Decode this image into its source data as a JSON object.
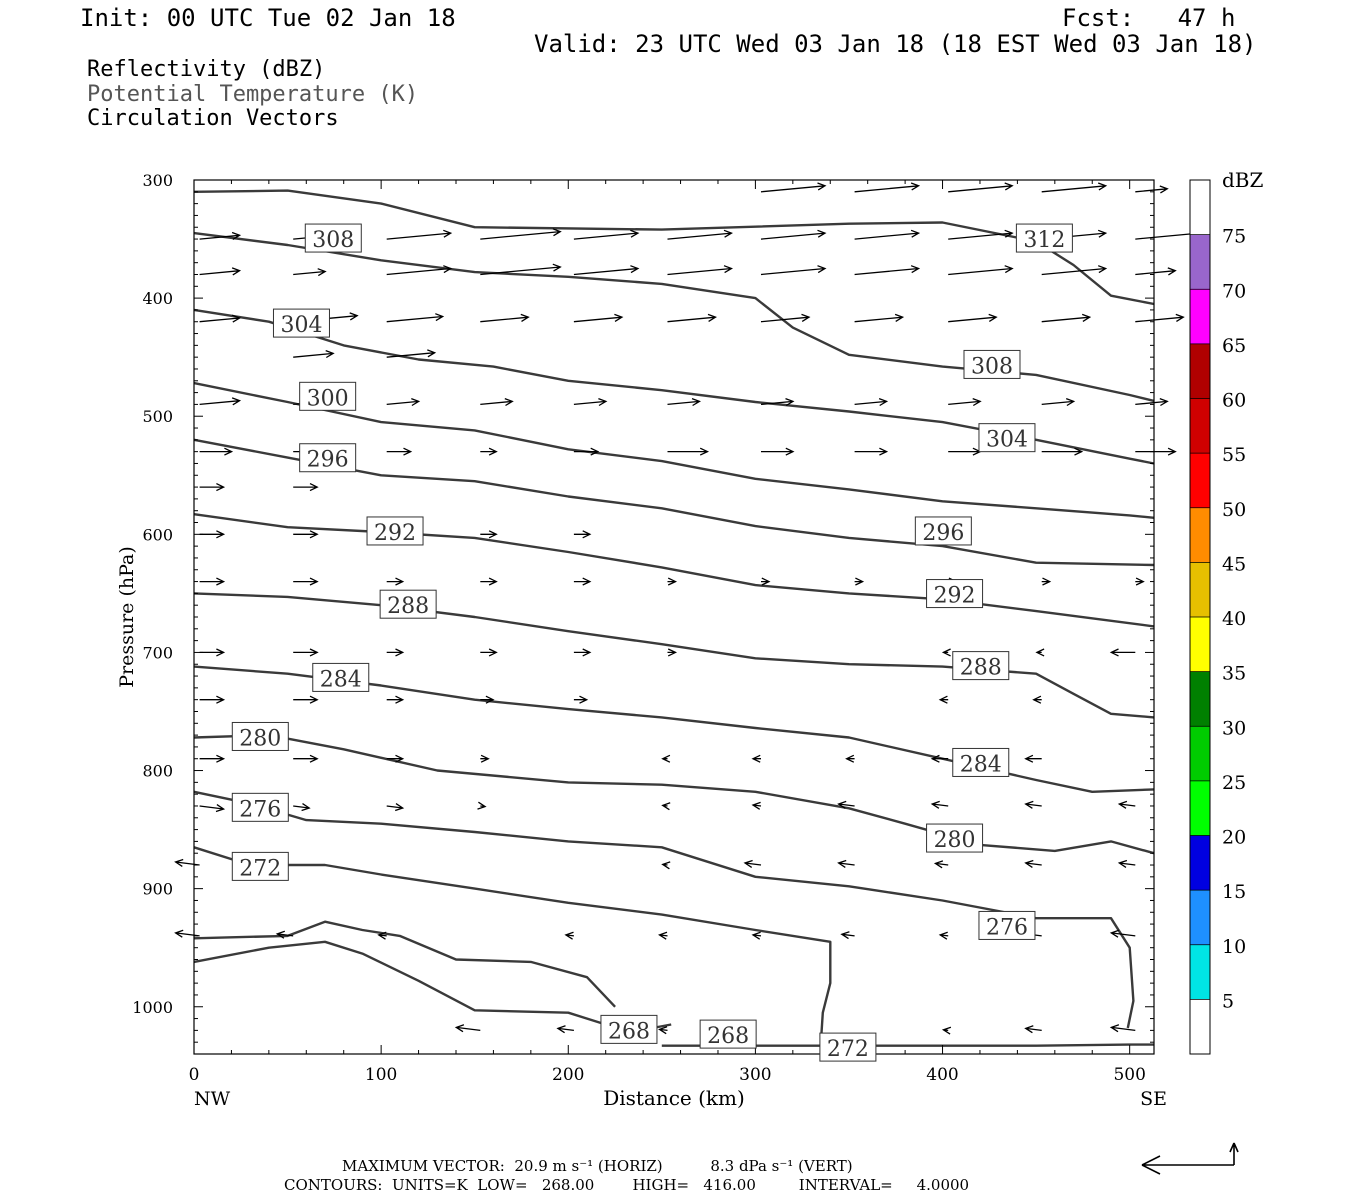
{
  "header": {
    "init": "Init: 00 UTC Tue 02 Jan 18",
    "fcst": "Fcst:   47 h",
    "valid": "Valid: 23 UTC Wed 03 Jan 18 (18 EST Wed 03 Jan 18)",
    "fields": [
      "Reflectivity (dBZ)",
      "Potential Temperature (K)",
      "Circulation Vectors"
    ]
  },
  "footer": {
    "max_vector": "MAXIMUM VECTOR:  20.9 m s⁻¹ (HORIZ)          8.3 dPa s⁻¹ (VERT)",
    "contours": "CONTOURS:  UNITS=K  LOW=   268.00        HIGH=   416.00         INTERVAL=     4.0000"
  },
  "colors": {
    "contour": "#3a3a3a",
    "gray_text": "#555555",
    "scale": [
      "#ffffff",
      "#00e5e5",
      "#1e90ff",
      "#0000e0",
      "#00ff00",
      "#00cc00",
      "#008000",
      "#ffff00",
      "#e6c000",
      "#ff8c00",
      "#ff0000",
      "#d00000",
      "#b00000",
      "#ff00ff",
      "#9966cc",
      "#ffffff"
    ]
  },
  "chart_data": {
    "type": "cross-section",
    "xlabel": "Distance (km)",
    "ylabel": "Pressure (hPa)",
    "xlim": [
      0,
      513
    ],
    "ylim": [
      300,
      1040
    ],
    "x_ticks": [
      0,
      100,
      200,
      300,
      400,
      500
    ],
    "y_ticks": [
      300,
      400,
      500,
      600,
      700,
      800,
      900,
      1000
    ],
    "x_left_label": "NW",
    "x_right_label": "SE",
    "colorbar_unit": "dBZ",
    "colorbar_ticks": [
      5,
      10,
      15,
      20,
      25,
      30,
      35,
      40,
      45,
      50,
      55,
      60,
      65,
      70,
      75
    ],
    "theta_contours": [
      {
        "label": "312",
        "pts": [
          [
            0,
            310
          ],
          [
            50,
            309
          ],
          [
            100,
            320
          ],
          [
            150,
            340
          ],
          [
            250,
            342
          ],
          [
            350,
            337
          ],
          [
            400,
            336
          ],
          [
            450,
            352
          ],
          [
            470,
            372
          ],
          [
            490,
            398
          ],
          [
            513,
            405
          ]
        ],
        "labels_at": [
          [
            440,
            350
          ]
        ]
      },
      {
        "label": "308",
        "pts": [
          [
            0,
            345
          ],
          [
            50,
            355
          ],
          [
            100,
            368
          ],
          [
            150,
            378
          ],
          [
            200,
            382
          ],
          [
            250,
            388
          ],
          [
            300,
            400
          ],
          [
            320,
            425
          ],
          [
            350,
            448
          ],
          [
            400,
            458
          ],
          [
            450,
            465
          ],
          [
            500,
            482
          ],
          [
            513,
            487
          ]
        ],
        "labels_at": [
          [
            60,
            350
          ],
          [
            412,
            457
          ]
        ]
      },
      {
        "label": "304",
        "pts": [
          [
            0,
            410
          ],
          [
            40,
            420
          ],
          [
            80,
            440
          ],
          [
            120,
            452
          ],
          [
            160,
            458
          ],
          [
            200,
            470
          ],
          [
            250,
            478
          ],
          [
            300,
            488
          ],
          [
            350,
            496
          ],
          [
            400,
            505
          ],
          [
            450,
            520
          ],
          [
            500,
            536
          ],
          [
            513,
            540
          ]
        ],
        "labels_at": [
          [
            43,
            422
          ],
          [
            420,
            519
          ]
        ]
      },
      {
        "label": "300",
        "pts": [
          [
            0,
            472
          ],
          [
            50,
            488
          ],
          [
            100,
            505
          ],
          [
            150,
            512
          ],
          [
            200,
            528
          ],
          [
            250,
            538
          ],
          [
            300,
            553
          ],
          [
            350,
            562
          ],
          [
            400,
            572
          ],
          [
            450,
            578
          ],
          [
            500,
            584
          ],
          [
            513,
            586
          ]
        ],
        "labels_at": [
          [
            57,
            484
          ]
        ]
      },
      {
        "label": "296",
        "pts": [
          [
            0,
            520
          ],
          [
            50,
            535
          ],
          [
            100,
            550
          ],
          [
            150,
            555
          ],
          [
            200,
            568
          ],
          [
            250,
            578
          ],
          [
            300,
            593
          ],
          [
            350,
            603
          ],
          [
            400,
            610
          ],
          [
            450,
            624
          ],
          [
            513,
            626
          ]
        ],
        "labels_at": [
          [
            57,
            536
          ],
          [
            386,
            598
          ]
        ]
      },
      {
        "label": "292",
        "pts": [
          [
            0,
            583
          ],
          [
            50,
            594
          ],
          [
            100,
            598
          ],
          [
            150,
            603
          ],
          [
            200,
            615
          ],
          [
            250,
            628
          ],
          [
            300,
            643
          ],
          [
            350,
            650
          ],
          [
            400,
            655
          ],
          [
            450,
            665
          ],
          [
            513,
            678
          ]
        ],
        "labels_at": [
          [
            93,
            598
          ],
          [
            392,
            651
          ]
        ]
      },
      {
        "label": "288",
        "pts": [
          [
            0,
            650
          ],
          [
            50,
            653
          ],
          [
            100,
            660
          ],
          [
            150,
            670
          ],
          [
            200,
            682
          ],
          [
            250,
            693
          ],
          [
            300,
            705
          ],
          [
            350,
            710
          ],
          [
            400,
            712
          ],
          [
            450,
            718
          ],
          [
            470,
            735
          ],
          [
            490,
            752
          ],
          [
            513,
            755
          ]
        ],
        "labels_at": [
          [
            100,
            660
          ],
          [
            406,
            712
          ]
        ]
      },
      {
        "label": "284",
        "pts": [
          [
            0,
            712
          ],
          [
            50,
            718
          ],
          [
            100,
            728
          ],
          [
            150,
            740
          ],
          [
            200,
            748
          ],
          [
            250,
            755
          ],
          [
            300,
            764
          ],
          [
            350,
            772
          ],
          [
            400,
            790
          ],
          [
            450,
            808
          ],
          [
            480,
            818
          ],
          [
            513,
            816
          ]
        ],
        "labels_at": [
          [
            64,
            722
          ],
          [
            406,
            794
          ]
        ]
      },
      {
        "label": "280",
        "pts": [
          [
            0,
            772
          ],
          [
            40,
            770
          ],
          [
            80,
            782
          ],
          [
            130,
            800
          ],
          [
            200,
            810
          ],
          [
            250,
            812
          ],
          [
            300,
            818
          ],
          [
            350,
            832
          ],
          [
            380,
            845
          ],
          [
            420,
            863
          ],
          [
            460,
            868
          ],
          [
            490,
            860
          ],
          [
            513,
            870
          ]
        ],
        "labels_at": [
          [
            21,
            772
          ],
          [
            392,
            858
          ]
        ]
      },
      {
        "label": "276",
        "pts": [
          [
            0,
            818
          ],
          [
            30,
            828
          ],
          [
            60,
            842
          ],
          [
            100,
            845
          ],
          [
            150,
            852
          ],
          [
            200,
            860
          ],
          [
            250,
            865
          ],
          [
            300,
            890
          ],
          [
            350,
            898
          ],
          [
            400,
            910
          ],
          [
            450,
            925
          ],
          [
            490,
            925
          ],
          [
            500,
            950
          ],
          [
            502,
            995
          ],
          [
            499,
            1018
          ]
        ],
        "labels_at": [
          [
            21,
            832
          ],
          [
            420,
            932
          ]
        ]
      },
      {
        "label": "272",
        "pts": [
          [
            0,
            865
          ],
          [
            30,
            880
          ],
          [
            70,
            880
          ],
          [
            100,
            888
          ],
          [
            150,
            900
          ],
          [
            200,
            912
          ],
          [
            250,
            922
          ],
          [
            300,
            935
          ],
          [
            340,
            945
          ],
          [
            340,
            980
          ],
          [
            336,
            1005
          ],
          [
            335,
            1030
          ]
        ],
        "labels_at": [
          [
            21,
            882
          ],
          [
            335,
            1035
          ]
        ]
      },
      {
        "label": "268",
        "pts": [
          [
            0,
            942
          ],
          [
            50,
            940
          ],
          [
            70,
            928
          ],
          [
            90,
            935
          ],
          [
            110,
            940
          ],
          [
            140,
            960
          ],
          [
            180,
            962
          ],
          [
            210,
            975
          ],
          [
            225,
            1000
          ]
        ],
        "labels_at": [
          [
            218,
            1020
          ]
        ]
      },
      {
        "label": "268",
        "pts": [
          [
            0,
            962
          ],
          [
            40,
            950
          ],
          [
            70,
            945
          ],
          [
            90,
            955
          ],
          [
            120,
            978
          ],
          [
            150,
            1003
          ],
          [
            200,
            1005
          ],
          [
            230,
            1020
          ],
          [
            240,
            1028
          ],
          [
            245,
            1018
          ],
          [
            255,
            1015
          ]
        ],
        "labels_at": [
          [
            271,
            1024
          ]
        ]
      },
      {
        "label": "",
        "pts": [
          [
            250,
            1033
          ],
          [
            300,
            1033
          ],
          [
            350,
            1033
          ],
          [
            400,
            1033
          ],
          [
            450,
            1033
          ],
          [
            500,
            1032
          ],
          [
            513,
            1032
          ]
        ],
        "labels_at": []
      }
    ],
    "vector_grid": {
      "x": [
        0,
        50,
        100,
        150,
        200,
        250,
        300,
        350,
        400,
        450,
        500
      ],
      "p": [
        310,
        350,
        380,
        420,
        450,
        490,
        530,
        560,
        600,
        640,
        700,
        740,
        790,
        830,
        880,
        940,
        1020
      ],
      "dx": [
        [
          0,
          0,
          0,
          0,
          0,
          0,
          40,
          40,
          40,
          40,
          20
        ],
        [
          25,
          20,
          40,
          50,
          40,
          40,
          40,
          40,
          40,
          40,
          40
        ],
        [
          25,
          20,
          40,
          50,
          40,
          40,
          40,
          40,
          40,
          40,
          25
        ],
        [
          25,
          40,
          35,
          30,
          30,
          30,
          30,
          30,
          30,
          30,
          30
        ],
        [
          0,
          25,
          30,
          0,
          0,
          0,
          0,
          0,
          0,
          0,
          0
        ],
        [
          25,
          25,
          20,
          20,
          20,
          20,
          20,
          20,
          20,
          20,
          20
        ],
        [
          20,
          20,
          15,
          10,
          15,
          25,
          20,
          20,
          20,
          25,
          25
        ],
        [
          15,
          15,
          0,
          0,
          0,
          0,
          0,
          0,
          0,
          0,
          0
        ],
        [
          15,
          15,
          15,
          10,
          10,
          0,
          0,
          0,
          0,
          0,
          0
        ],
        [
          15,
          15,
          10,
          10,
          10,
          5,
          5,
          5,
          5,
          5,
          5
        ],
        [
          15,
          15,
          10,
          10,
          10,
          5,
          0,
          0,
          -3,
          -3,
          -15
        ],
        [
          15,
          15,
          10,
          8,
          8,
          0,
          0,
          0,
          -5,
          -5,
          0
        ],
        [
          15,
          15,
          10,
          5,
          0,
          -3,
          -5,
          -5,
          -10,
          -10,
          0
        ],
        [
          15,
          10,
          10,
          3,
          0,
          -3,
          -5,
          -10,
          -10,
          -10,
          -10
        ],
        [
          -15,
          0,
          0,
          0,
          0,
          -3,
          -10,
          -10,
          -8,
          -10,
          -10
        ],
        [
          -15,
          -10,
          -5,
          0,
          -5,
          -5,
          -5,
          -8,
          -5,
          -10,
          -15
        ],
        [
          0,
          0,
          0,
          -15,
          -10,
          -5,
          0,
          0,
          -3,
          -10,
          -15
        ]
      ]
    }
  }
}
